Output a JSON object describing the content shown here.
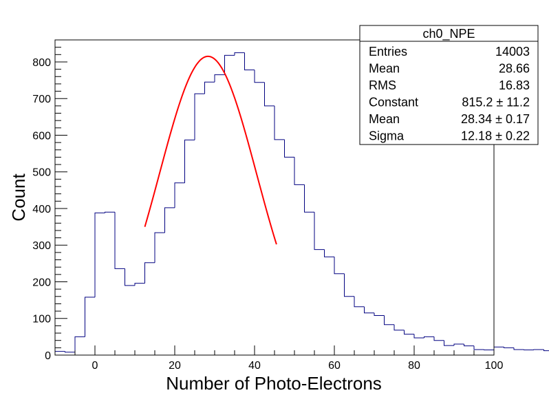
{
  "chart_data": {
    "type": "histogram",
    "title": "",
    "xlabel": "Number of Photo-Electrons",
    "ylabel": "Count",
    "xlim": [
      -10,
      100
    ],
    "ylim": [
      0,
      860
    ],
    "x_ticks": [
      "0",
      "20",
      "40",
      "60",
      "80",
      "100"
    ],
    "y_ticks": [
      "0",
      "100",
      "200",
      "300",
      "400",
      "500",
      "600",
      "700",
      "800"
    ],
    "bin_width": 2.5,
    "bin_start": -10,
    "bin_values": [
      10,
      8,
      50,
      158,
      388,
      390,
      236,
      190,
      196,
      252,
      334,
      402,
      470,
      587,
      713,
      745,
      765,
      818,
      825,
      778,
      744,
      680,
      588,
      540,
      465,
      390,
      288,
      268,
      222,
      160,
      132,
      115,
      108,
      83,
      68,
      57,
      47,
      50,
      40,
      26,
      30,
      25,
      15,
      14,
      22,
      20,
      15,
      14,
      15,
      12,
      10,
      12,
      11,
      10
    ],
    "histogram_color": "#000080",
    "fit": {
      "function": "gaus",
      "color": "#ff0000",
      "constant": 815.2,
      "mean": 28.34,
      "sigma": 12.18,
      "x_range": [
        12.5,
        45.5
      ]
    },
    "stats_box": {
      "title": "ch0_NPE",
      "rows": [
        {
          "label": "Entries",
          "value": "14003"
        },
        {
          "label": "Mean",
          "value": "28.66"
        },
        {
          "label": "RMS",
          "value": "16.83"
        },
        {
          "label": "Constant",
          "value": "815.2 ± 11.2"
        },
        {
          "label": "Mean",
          "value": "28.34 ± 0.17"
        },
        {
          "label": "Sigma",
          "value": "12.18 ± 0.22"
        }
      ]
    },
    "grid": false,
    "legend": "top-right"
  }
}
